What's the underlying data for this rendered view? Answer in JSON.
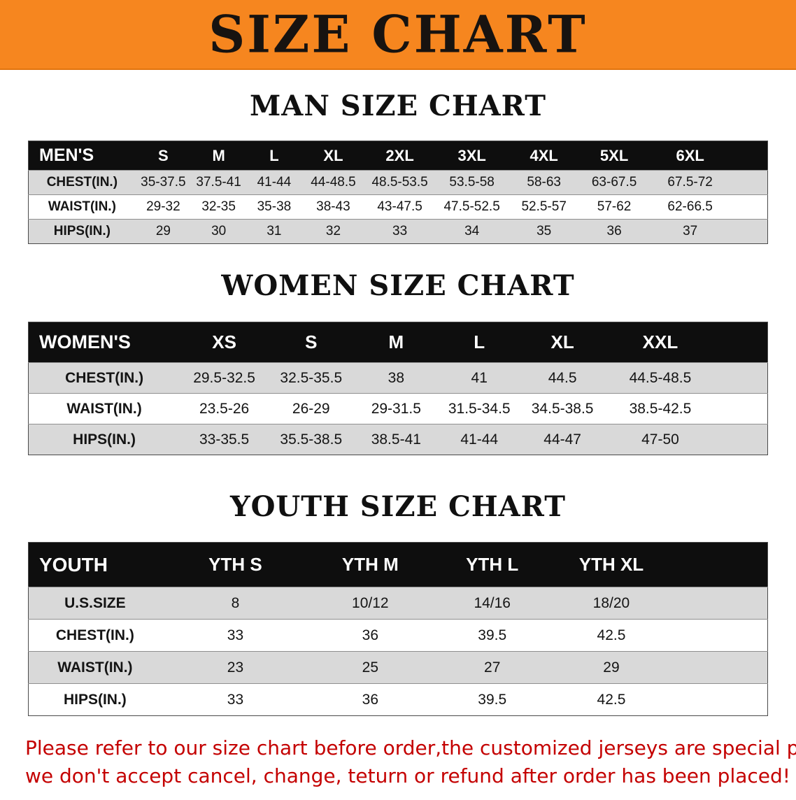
{
  "banner": {
    "title": "SIZE CHART"
  },
  "sections": [
    {
      "id": "men",
      "heading": "MAN SIZE CHART",
      "table": {
        "columns": [
          "MEN'S",
          "S",
          "M",
          "L",
          "XL",
          "2XL",
          "3XL",
          "4XL",
          "5XL",
          "6XL"
        ],
        "rows": [
          [
            "CHEST(IN.)",
            "35-37.5",
            "37.5-41",
            "41-44",
            "44-48.5",
            "48.5-53.5",
            "53.5-58",
            "58-63",
            "63-67.5",
            "67.5-72"
          ],
          [
            "WAIST(IN.)",
            "29-32",
            "32-35",
            "35-38",
            "38-43",
            "43-47.5",
            "47.5-52.5",
            "52.5-57",
            "57-62",
            "62-66.5"
          ],
          [
            "HIPS(IN.)",
            "29",
            "30",
            "31",
            "32",
            "33",
            "34",
            "35",
            "36",
            "37"
          ]
        ]
      }
    },
    {
      "id": "women",
      "heading": "WOMEN SIZE CHART",
      "table": {
        "columns": [
          "WOMEN'S",
          "XS",
          "S",
          "M",
          "L",
          "XL",
          "XXL"
        ],
        "rows": [
          [
            "CHEST(IN.)",
            "29.5-32.5",
            "32.5-35.5",
            "38",
            "41",
            "44.5",
            "44.5-48.5"
          ],
          [
            "WAIST(IN.)",
            "23.5-26",
            "26-29",
            "29-31.5",
            "31.5-34.5",
            "34.5-38.5",
            "38.5-42.5"
          ],
          [
            "HIPS(IN.)",
            "33-35.5",
            "35.5-38.5",
            "38.5-41",
            "41-44",
            "44-47",
            "47-50"
          ]
        ]
      }
    },
    {
      "id": "youth",
      "heading": "YOUTH SIZE CHART",
      "table": {
        "columns": [
          "YOUTH",
          "YTH S",
          "YTH M",
          "YTH L",
          "YTH XL"
        ],
        "rows": [
          [
            "U.S.SIZE",
            "8",
            "10/12",
            "14/16",
            "18/20"
          ],
          [
            "CHEST(IN.)",
            "33",
            "36",
            "39.5",
            "42.5"
          ],
          [
            "WAIST(IN.)",
            "23",
            "25",
            "27",
            "29"
          ],
          [
            "HIPS(IN.)",
            "33",
            "36",
            "39.5",
            "42.5"
          ]
        ]
      }
    }
  ],
  "footer": {
    "lines": [
      "Please refer to our size chart before order,the customized jerseys are special products,",
      "we don't accept cancel, change, teturn or refund after order has been placed!"
    ]
  },
  "colors": {
    "banner_bg": "#F6861F",
    "header_bg": "#0E0E0E",
    "stripe_bg": "#D9D9D9",
    "footer_text": "#C40000"
  }
}
